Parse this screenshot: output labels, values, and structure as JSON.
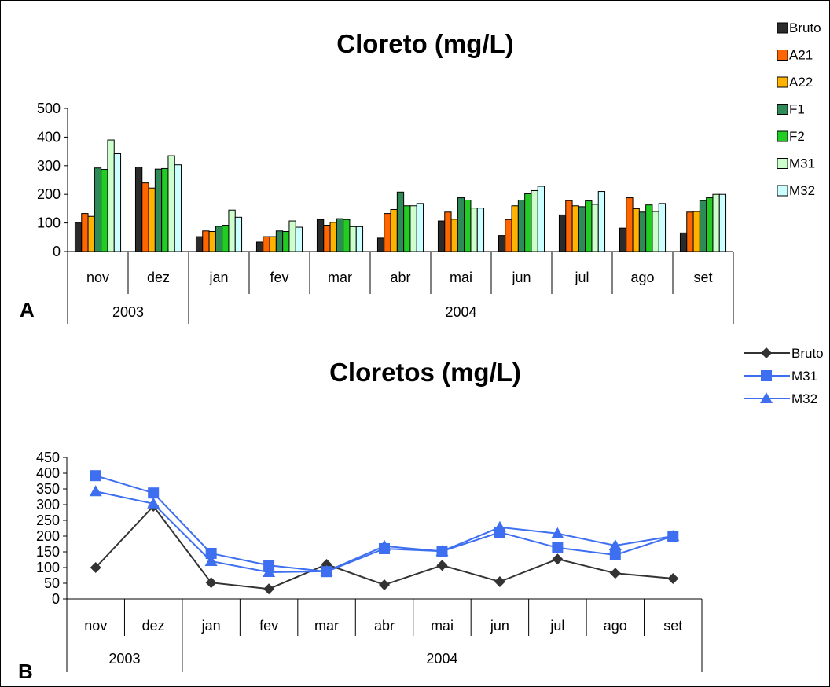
{
  "months": [
    "nov",
    "dez",
    "jan",
    "fev",
    "mar",
    "abr",
    "mai",
    "jun",
    "jul",
    "ago",
    "set"
  ],
  "years": [
    {
      "label": "2003",
      "span": 2
    },
    {
      "label": "2004",
      "span": 9
    }
  ],
  "chart_data": [
    {
      "type": "bar",
      "title": "Cloreto (mg/L)",
      "panel_label": "A",
      "categories": [
        "nov",
        "dez",
        "jan",
        "fev",
        "mar",
        "abr",
        "mai",
        "jun",
        "jul",
        "ago",
        "set"
      ],
      "ylim": [
        0,
        500
      ],
      "yticks": [
        0,
        100,
        200,
        300,
        400,
        500
      ],
      "legend_position": "top-right",
      "series": [
        {
          "name": "Bruto",
          "color": "#2b2b2b",
          "values": [
            100,
            295,
            52,
            33,
            112,
            47,
            107,
            56,
            128,
            82,
            65
          ]
        },
        {
          "name": "A21",
          "color": "#ff6600",
          "values": [
            133,
            240,
            72,
            52,
            92,
            133,
            138,
            112,
            178,
            188,
            138
          ]
        },
        {
          "name": "A22",
          "color": "#ffb300",
          "values": [
            123,
            222,
            70,
            52,
            102,
            147,
            113,
            160,
            160,
            150,
            140
          ]
        },
        {
          "name": "F1",
          "color": "#2e8b57",
          "values": [
            292,
            288,
            88,
            72,
            115,
            208,
            188,
            180,
            157,
            138,
            178
          ]
        },
        {
          "name": "F2",
          "color": "#22cc22",
          "values": [
            287,
            290,
            92,
            70,
            112,
            160,
            180,
            202,
            177,
            163,
            188
          ]
        },
        {
          "name": "M31",
          "color": "#ccffcc",
          "values": [
            390,
            335,
            145,
            107,
            87,
            160,
            152,
            213,
            165,
            140,
            200
          ]
        },
        {
          "name": "M32",
          "color": "#ccffff",
          "values": [
            342,
            303,
            120,
            85,
            87,
            168,
            152,
            228,
            210,
            168,
            200
          ]
        }
      ]
    },
    {
      "type": "line",
      "title": "Cloretos (mg/L)",
      "panel_label": "B",
      "categories": [
        "nov",
        "dez",
        "jan",
        "fev",
        "mar",
        "abr",
        "mai",
        "jun",
        "jul",
        "ago",
        "set"
      ],
      "ylim": [
        0,
        450
      ],
      "yticks": [
        0,
        50,
        100,
        150,
        200,
        250,
        300,
        350,
        400,
        450
      ],
      "legend_position": "top-right",
      "series": [
        {
          "name": "Bruto",
          "color": "#333333",
          "marker": "diamond",
          "values": [
            100,
            295,
            52,
            32,
            110,
            45,
            107,
            55,
            127,
            82,
            65
          ]
        },
        {
          "name": "M31",
          "color": "#3d6ff0",
          "marker": "square",
          "values": [
            392,
            337,
            145,
            107,
            87,
            160,
            152,
            212,
            163,
            140,
            200
          ]
        },
        {
          "name": "M32",
          "color": "#3d6ff0",
          "marker": "triangle",
          "values": [
            342,
            303,
            120,
            85,
            88,
            168,
            152,
            228,
            208,
            170,
            200
          ]
        }
      ]
    }
  ]
}
